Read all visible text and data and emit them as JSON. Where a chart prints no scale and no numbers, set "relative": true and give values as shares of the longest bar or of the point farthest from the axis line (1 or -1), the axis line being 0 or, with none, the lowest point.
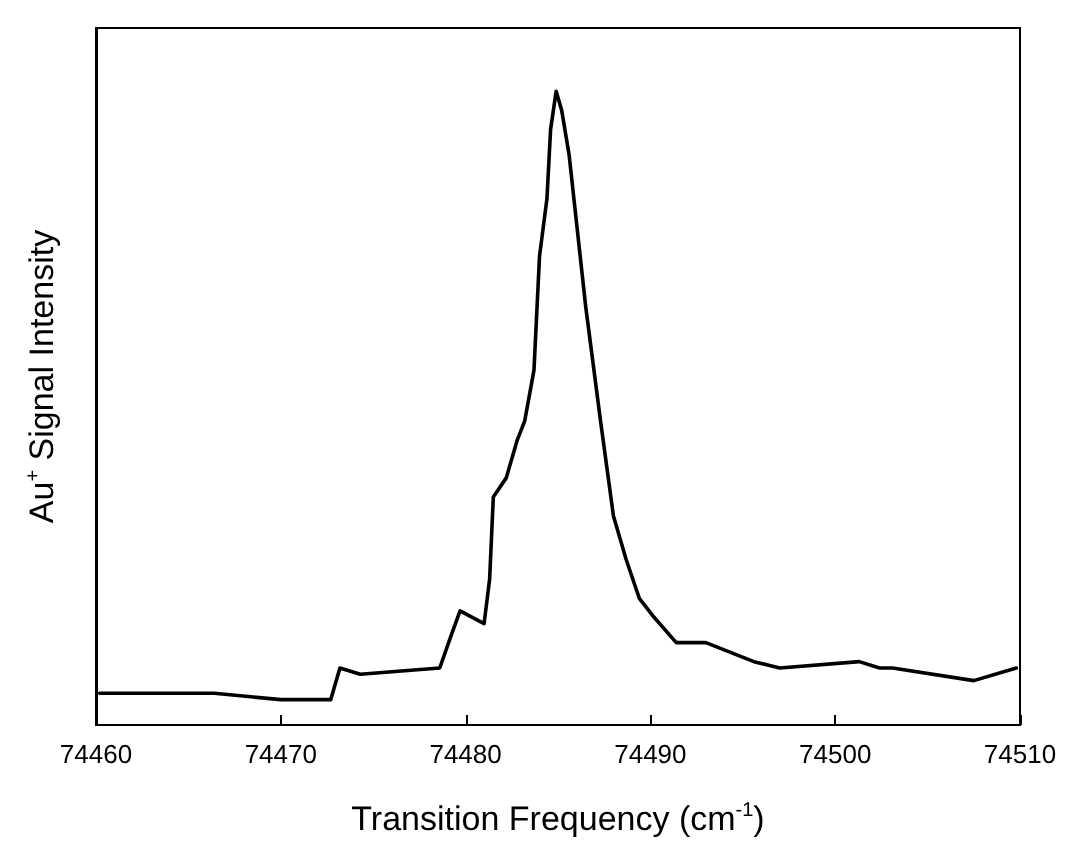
{
  "chart_data": {
    "type": "line",
    "xlabel": "Transition Frequency (cm$^{-1}$)",
    "ylabel": "Au$^{+}$ Signal Intensity",
    "relative": true,
    "xlim": [
      74460,
      74510
    ],
    "xticks": [
      74460,
      74470,
      74480,
      74490,
      74500,
      74510
    ],
    "grid": false,
    "marker": "none",
    "line_style": "solid",
    "series": [
      {
        "color": "#000000",
        "x": [
          74460.2,
          74466.4,
          74470.0,
          74472.7,
          74473.2,
          74474.3,
          74478.6,
          74479.2,
          74479.7,
          74481.0,
          74481.3,
          74481.5,
          74482.2,
          74482.8,
          74483.2,
          74483.7,
          74484.0,
          74484.4,
          74484.6,
          74484.9,
          74485.2,
          74485.6,
          74486.5,
          74487.3,
          74488.0,
          74488.7,
          74489.4,
          74490.2,
          74491.4,
          74493.0,
          74495.6,
          74497.0,
          74501.3,
          74502.4,
          74503.1,
          74507.5,
          74509.8
        ],
        "values": [
          0.05,
          0.05,
          0.04,
          0.04,
          0.09,
          0.08,
          0.09,
          0.14,
          0.18,
          0.16,
          0.23,
          0.36,
          0.39,
          0.45,
          0.48,
          0.56,
          0.74,
          0.83,
          0.94,
          1.0,
          0.97,
          0.9,
          0.66,
          0.48,
          0.33,
          0.26,
          0.2,
          0.17,
          0.13,
          0.13,
          0.1,
          0.09,
          0.1,
          0.09,
          0.09,
          0.07,
          0.09
        ]
      }
    ]
  }
}
